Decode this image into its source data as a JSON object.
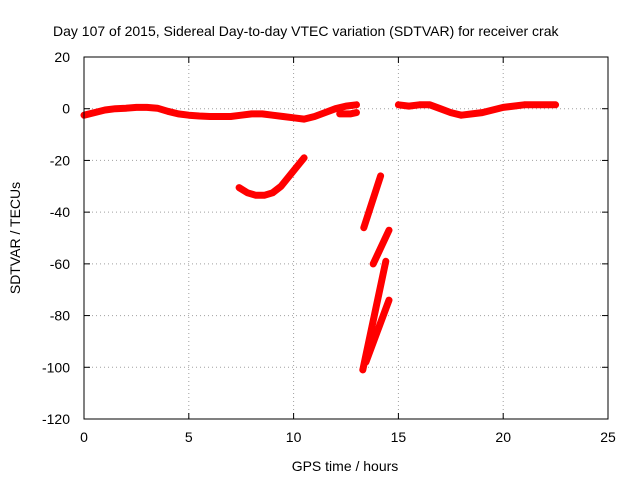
{
  "chart_data": {
    "type": "line",
    "title": "Day 107 of 2015, Sidereal Day-to-day VTEC variation (SDTVAR) for receiver crak",
    "xlabel": "GPS time / hours",
    "ylabel": "SDTVAR / TECUs",
    "xlim": [
      0,
      25
    ],
    "ylim": [
      -120,
      20
    ],
    "x_ticks": [
      0,
      5,
      10,
      15,
      20,
      25
    ],
    "y_ticks": [
      -120,
      -100,
      -80,
      -60,
      -40,
      -20,
      0,
      20
    ],
    "grid": true,
    "legend": "none",
    "series_color": "#ff0000",
    "series": [
      {
        "x": [
          0,
          0.5,
          1,
          1.5,
          2,
          2.5,
          3,
          3.5,
          4,
          4.5,
          5,
          5.5,
          6,
          6.5,
          7,
          7.5,
          8,
          8.5,
          9,
          9.5,
          10,
          10.5,
          11,
          11.5,
          12,
          12.5,
          13
        ],
        "y": [
          -2.5,
          -1.5,
          -0.5,
          0,
          0.2,
          0.5,
          0.5,
          0.2,
          -1,
          -2,
          -2.5,
          -2.8,
          -3,
          -3,
          -3,
          -2.5,
          -2,
          -2,
          -2.5,
          -3,
          -3.5,
          -4,
          -3,
          -1.5,
          0,
          1,
          1.5
        ]
      },
      {
        "x": [
          12.2,
          12.7,
          13.0
        ],
        "y": [
          -2,
          -2,
          -1.5
        ]
      },
      {
        "x": [
          15,
          15.5,
          16,
          16.5,
          17,
          17.5,
          18,
          18.5,
          19,
          19.5,
          20,
          20.5,
          21,
          21.5,
          22,
          22.5
        ],
        "y": [
          1.5,
          1,
          1.5,
          1.5,
          0,
          -1.5,
          -2.5,
          -2,
          -1.5,
          -0.5,
          0.5,
          1,
          1.5,
          1.5,
          1.5,
          1.5
        ]
      },
      {
        "x": [
          7.4,
          7.8,
          8.2,
          8.6,
          9.0,
          9.4,
          9.8,
          10.2,
          10.5
        ],
        "y": [
          -30.5,
          -32.5,
          -33.5,
          -33.5,
          -32.5,
          -30,
          -26,
          -22,
          -19
        ]
      },
      {
        "x": [
          13.35,
          14.15
        ],
        "y": [
          -46,
          -26
        ]
      },
      {
        "x": [
          13.8,
          14.55
        ],
        "y": [
          -60,
          -47
        ]
      },
      {
        "x": [
          13.3,
          14.4
        ],
        "y": [
          -101,
          -59
        ]
      },
      {
        "x": [
          13.45,
          14.55
        ],
        "y": [
          -98,
          -74
        ]
      }
    ]
  }
}
